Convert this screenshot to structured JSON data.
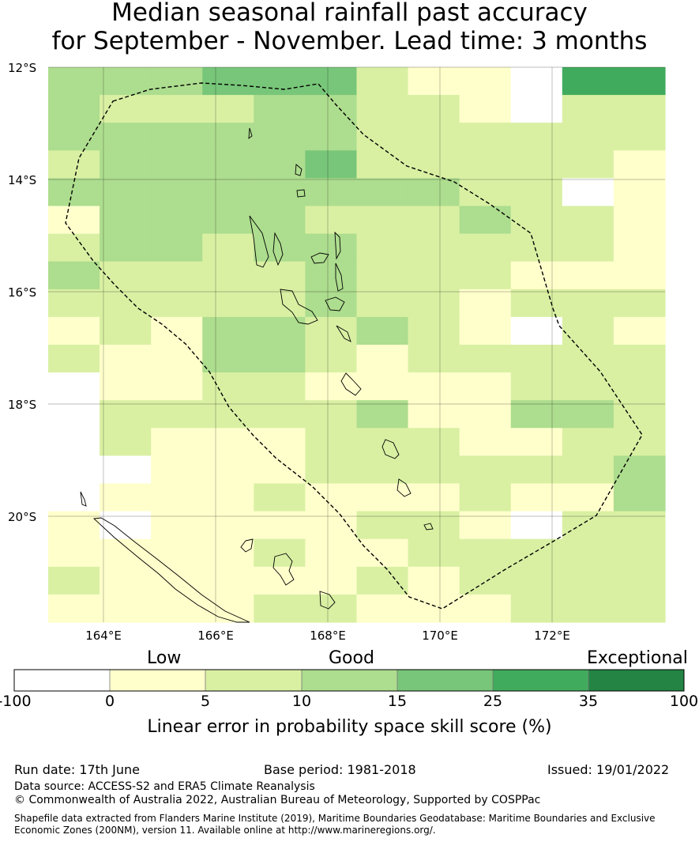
{
  "title": {
    "line1": "Median seasonal rainfall past accuracy",
    "line2": "for September - November. Lead time: 3 months"
  },
  "map": {
    "lat_labels": [
      "12°S",
      "14°S",
      "16°S",
      "18°S",
      "20°S"
    ],
    "lon_labels": [
      "164°E",
      "166°E",
      "168°E",
      "170°E",
      "172°E"
    ],
    "grid_rows": [
      "333444211055",
      "322233221022",
      "333333222222",
      "233334222221",
      "333333332201",
      "133332223221",
      "233233222221",
      "322223222111",
      "222223221222",
      "121332321021",
      "211332122222",
      "011221111222",
      "022222311332",
      "021112221122",
      "001112222223",
      "011121112113",
      "101111221022",
      "111121122222",
      "211111212222",
      "111122111222"
    ],
    "grid_note_key": "digits index into colorbar.colors"
  },
  "colorbar": {
    "category_labels": [
      "Low",
      "Good",
      "Exceptional"
    ],
    "ticks": [
      "-100",
      "0",
      "5",
      "10",
      "15",
      "25",
      "35",
      "100"
    ],
    "colors": [
      "#ffffff",
      "#ffffcc",
      "#d9f0a3",
      "#addd8e",
      "#78c679",
      "#41ab5d",
      "#238443"
    ],
    "label": "Linear error in probability space skill score (%)"
  },
  "footer": {
    "run_date": "Run date: 17th June",
    "base_period": "Base period: 1981-2018",
    "issued": "Issued: 19/01/2022",
    "data_source": "Data source: ACCESS-S2 and ERA5 Climate Reanalysis",
    "copyright": "© Commonwealth of Australia 2022, Australian Bureau of Meteorology, Supported by COSPPac",
    "shapefile_line1": "Shapefile data extracted from Flanders Marine Institute (2019), Maritime Boundaries Geodatabase: Maritime Boundaries and Exclusive",
    "shapefile_line2": "Economic Zones (200NM), version 11. Available online at http://www.marineregions.org/."
  }
}
